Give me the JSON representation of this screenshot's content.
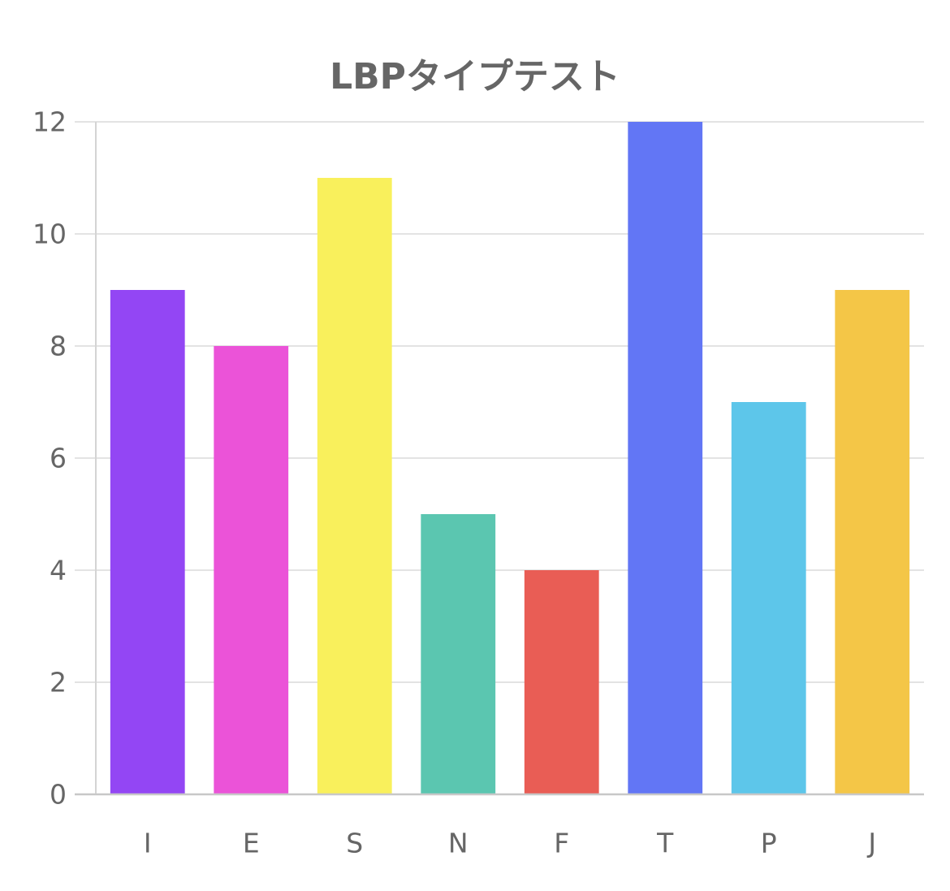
{
  "chart_data": {
    "type": "bar",
    "title": "LBPタイプテスト",
    "categories": [
      "I",
      "E",
      "S",
      "N",
      "F",
      "T",
      "P",
      "J"
    ],
    "values": [
      9,
      8,
      11,
      5,
      4,
      12,
      7,
      9
    ],
    "colors": [
      "#9346f4",
      "#eb53d8",
      "#f9f05c",
      "#5bc6b0",
      "#e95d55",
      "#6276f5",
      "#5dc6ea",
      "#f4c647"
    ],
    "ylim": [
      0,
      12
    ],
    "yticks": [
      0,
      2,
      4,
      6,
      8,
      10,
      12
    ],
    "xlabel": "",
    "ylabel": "",
    "grid": true,
    "legend": "none"
  }
}
